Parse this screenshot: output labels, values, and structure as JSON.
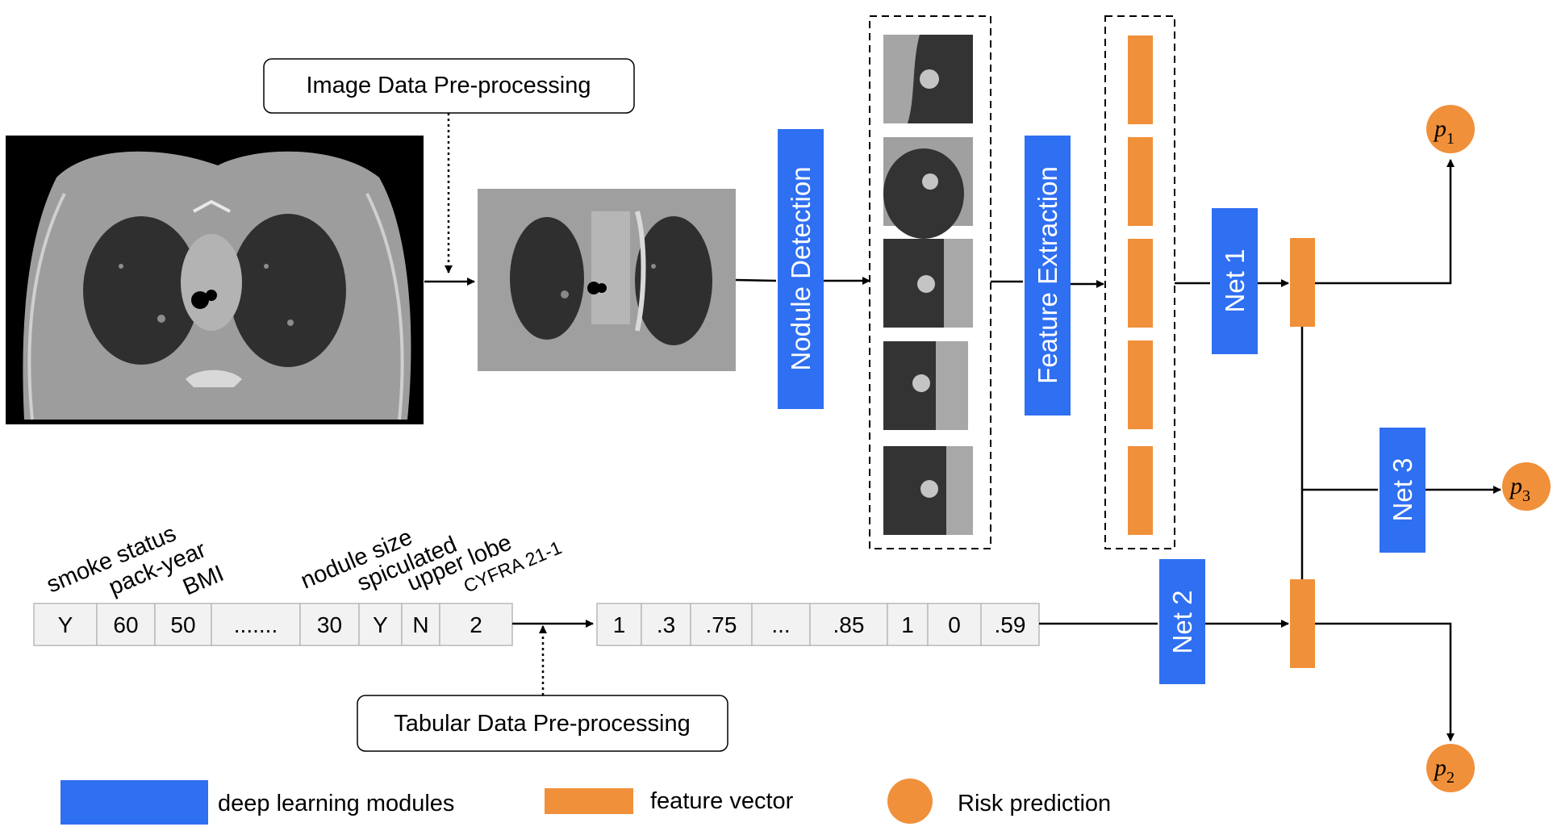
{
  "preprocess": {
    "image_label": "Image Data Pre-processing",
    "tabular_label": "Tabular Data Pre-processing"
  },
  "modules": {
    "nodule_detection": "Nodule Detection",
    "feature_extraction": "Feature Extraction",
    "net1": "Net 1",
    "net2": "Net 2",
    "net3": "Net 3"
  },
  "tabular": {
    "headers": [
      "smoke status",
      "pack-year",
      "BMI",
      "nodule size",
      "spiculated",
      "upper lobe",
      "CYFRA 21-1"
    ],
    "raw_values": [
      "Y",
      "60",
      "50",
      ".......",
      "30",
      "Y",
      "N",
      "2"
    ],
    "processed_values": [
      "1",
      ".3",
      ".75",
      "...",
      ".85",
      "1",
      "0",
      ".59"
    ]
  },
  "outputs": {
    "p1": {
      "base": "p",
      "sub": "1"
    },
    "p2": {
      "base": "p",
      "sub": "2"
    },
    "p3": {
      "base": "p",
      "sub": "3"
    }
  },
  "legend": {
    "deep_learning": "deep learning modules",
    "feature_vector": "feature vector",
    "risk_prediction": "Risk prediction"
  },
  "colors": {
    "module_blue": "#2f6ff1",
    "feature_orange": "#f0903a",
    "prediction_orange": "#f0903a",
    "table_fill": "#f2f2f2",
    "table_border": "#b9b9b9",
    "ct_background": "#000000",
    "ct_body": "#9d9d9d",
    "ct_lung": "#2f2f2f",
    "ct_processed_bg": "#9f9f9f",
    "patch_dark": "#333333"
  }
}
